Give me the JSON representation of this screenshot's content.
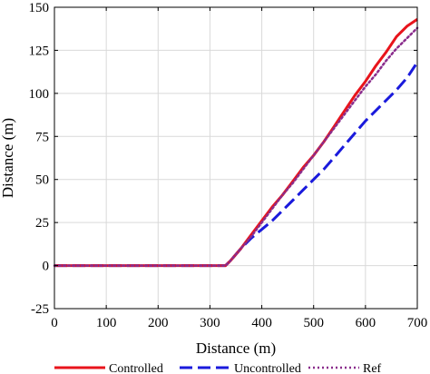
{
  "chart_data": {
    "type": "line",
    "xlabel": "Distance (m)",
    "ylabel": "Distance (m)",
    "xlim": [
      0,
      700
    ],
    "ylim": [
      -25,
      150
    ],
    "xticks": [
      0,
      100,
      200,
      300,
      400,
      500,
      600,
      700
    ],
    "yticks": [
      -25,
      0,
      25,
      50,
      75,
      100,
      125,
      150
    ],
    "xtick_labels": [
      "0",
      "100",
      "200",
      "300",
      "400",
      "500",
      "600",
      "700"
    ],
    "ytick_labels": [
      "-25",
      "0",
      "25",
      "50",
      "75",
      "100",
      "125",
      "150"
    ],
    "grid": true,
    "legend_position": "bottom",
    "series": [
      {
        "name": "Controlled",
        "color": "#e8141c",
        "style": "solid",
        "x": [
          0,
          100,
          200,
          300,
          330,
          340,
          360,
          380,
          400,
          420,
          440,
          460,
          480,
          500,
          520,
          540,
          560,
          580,
          600,
          620,
          640,
          660,
          680,
          700
        ],
        "y": [
          0,
          0,
          0,
          0,
          0,
          3,
          10,
          18,
          26,
          34,
          41,
          49,
          57,
          64,
          72,
          81,
          90,
          99,
          107,
          116,
          124,
          133,
          139,
          143
        ]
      },
      {
        "name": "Uncontrolled",
        "color": "#1a1adc",
        "style": "dashed",
        "x": [
          0,
          100,
          200,
          300,
          330,
          340,
          360,
          380,
          400,
          420,
          440,
          460,
          480,
          500,
          520,
          540,
          560,
          580,
          600,
          620,
          640,
          660,
          680,
          700
        ],
        "y": [
          0,
          0,
          0,
          0,
          0,
          3,
          10,
          16,
          21,
          26,
          32,
          38,
          44,
          50,
          56,
          63,
          70,
          77,
          84,
          90,
          96,
          102,
          109,
          118
        ]
      },
      {
        "name": "Ref",
        "color": "#8a2c8c",
        "style": "dotted",
        "x": [
          0,
          100,
          200,
          300,
          330,
          340,
          360,
          380,
          400,
          420,
          440,
          460,
          480,
          500,
          520,
          540,
          560,
          580,
          600,
          620,
          640,
          660,
          680,
          700
        ],
        "y": [
          0,
          0,
          0,
          0,
          0,
          3,
          10,
          17,
          25,
          33,
          41,
          48,
          56,
          64,
          72,
          80,
          88,
          96,
          104,
          111,
          119,
          126,
          132,
          138
        ]
      }
    ]
  }
}
